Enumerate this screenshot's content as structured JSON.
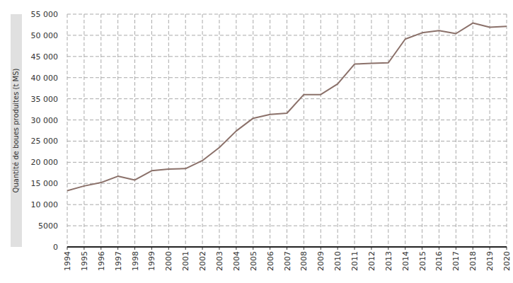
{
  "chart_data": {
    "type": "line",
    "y_label": "Quantité de boues produites (t MS)",
    "x": [
      1994,
      1995,
      1996,
      1997,
      1998,
      1999,
      2000,
      2001,
      2002,
      2003,
      2004,
      2005,
      2006,
      2007,
      2008,
      2009,
      2010,
      2011,
      2012,
      2013,
      2014,
      2015,
      2016,
      2017,
      2018,
      2019,
      2020
    ],
    "values": [
      13300,
      14400,
      15200,
      16700,
      15800,
      18000,
      18400,
      18500,
      20400,
      23500,
      27400,
      30400,
      31300,
      31600,
      36000,
      36000,
      38500,
      43200,
      43400,
      43500,
      49100,
      50600,
      51100,
      50400,
      52900,
      51900,
      52100
    ],
    "color": "#8b716a",
    "xlim": [
      1994,
      2020
    ],
    "xticks": [
      1994,
      1995,
      1996,
      1997,
      1998,
      1999,
      2000,
      2001,
      2002,
      2003,
      2004,
      2005,
      2006,
      2007,
      2008,
      2009,
      2010,
      2011,
      2012,
      2013,
      2014,
      2015,
      2016,
      2017,
      2018,
      2019,
      2020
    ],
    "ylim": [
      0,
      55000
    ],
    "yticks": [
      0,
      5000,
      {
        "value": 10000,
        "label": "10 000"
      },
      {
        "value": 15000,
        "label": "15 000"
      },
      {
        "value": 20000,
        "label": "20 000"
      },
      {
        "value": 25000,
        "label": "25 000"
      },
      {
        "value": 30000,
        "label": "30 000"
      },
      {
        "value": 35000,
        "label": "35 000"
      },
      {
        "value": 40000,
        "label": "40 000"
      },
      {
        "value": 45000,
        "label": "45 000"
      },
      {
        "value": 50000,
        "label": "50 000"
      },
      {
        "value": 55000,
        "label": "55 000"
      }
    ],
    "grid": true
  }
}
